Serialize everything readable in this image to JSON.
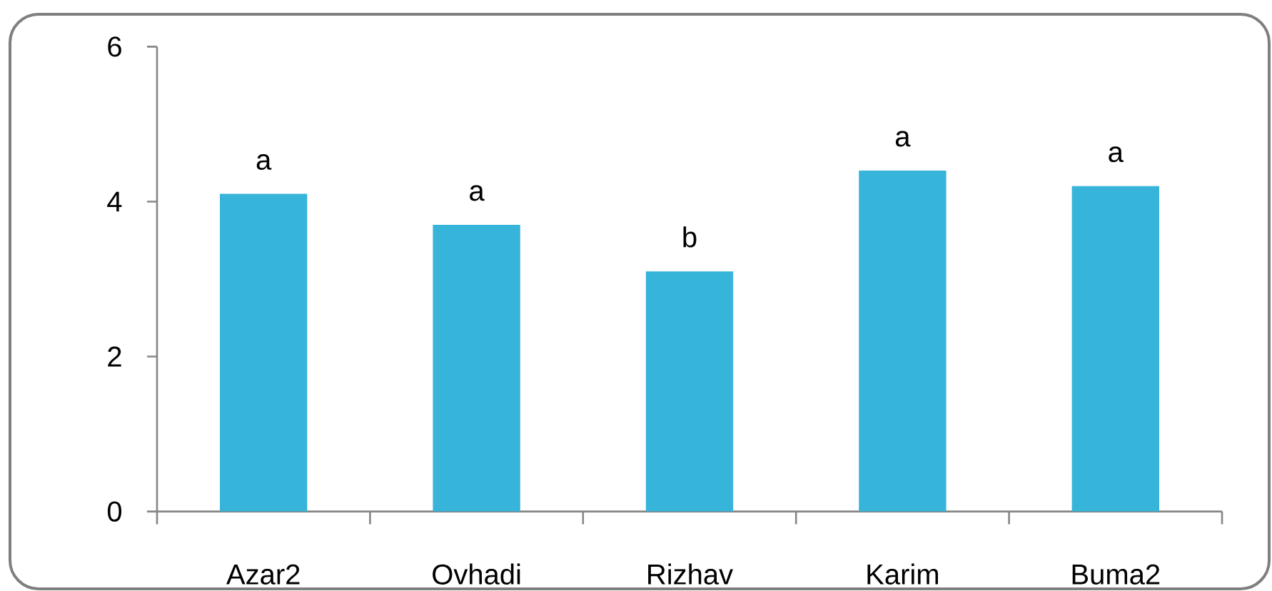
{
  "chart_data": {
    "type": "bar",
    "categories": [
      "Azar2",
      "Ovhadi",
      "Rizhav",
      "Karim",
      "Buma2"
    ],
    "values": [
      4.1,
      3.7,
      3.1,
      4.4,
      4.2
    ],
    "color": "#37b4d9",
    "ylim": [
      0,
      6
    ],
    "yticks": [
      0,
      2,
      4,
      6
    ],
    "annotations": [
      {
        "text": "a",
        "x": "Azar2",
        "y": 4.1
      },
      {
        "text": "a",
        "x": "Ovhadi",
        "y": 3.7
      },
      {
        "text": "b",
        "x": "Rizhav",
        "y": 3.1
      },
      {
        "text": "a",
        "x": "Karim",
        "y": 4.4
      },
      {
        "text": "a",
        "x": "Buma2",
        "y": 4.2
      }
    ]
  }
}
